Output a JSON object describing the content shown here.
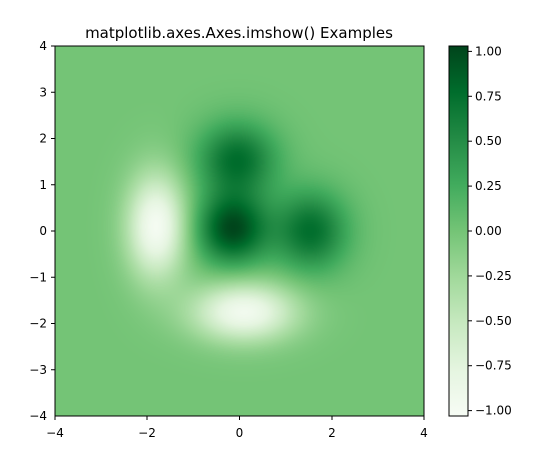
{
  "chart_data": {
    "type": "heatmap",
    "title": "matplotlib.axes.Axes.imshow() Examples",
    "xlabel": "",
    "ylabel": "",
    "xlim": [
      -4,
      4
    ],
    "ylim": [
      -4,
      4
    ],
    "xticks": [
      "−4",
      "−2",
      "0",
      "2",
      "4"
    ],
    "yticks": [
      "4",
      "3",
      "2",
      "1",
      "0",
      "−1",
      "−2",
      "−3",
      "−4"
    ],
    "colormap": "Greens",
    "colorbar": {
      "vmin": -1.03,
      "vmax": 1.03,
      "ticks": [
        "1.00",
        "0.75",
        "0.50",
        "0.25",
        "0.00",
        "−0.25",
        "−0.50",
        "−0.75",
        "−1.00"
      ]
    },
    "grid": false,
    "components": [
      {
        "x": -0.15,
        "y": 0.05,
        "amplitude": 1.0,
        "sigma_x": 0.55,
        "sigma_y": 0.55
      },
      {
        "x": -0.05,
        "y": 1.55,
        "amplitude": 0.75,
        "sigma_x": 0.6,
        "sigma_y": 0.55
      },
      {
        "x": 1.55,
        "y": 0.0,
        "amplitude": 0.75,
        "sigma_x": 0.55,
        "sigma_y": 0.6
      },
      {
        "x": -1.8,
        "y": 0.1,
        "amplitude": -1.0,
        "sigma_x": 0.45,
        "sigma_y": 0.8
      },
      {
        "x": 0.1,
        "y": -1.75,
        "amplitude": -0.95,
        "sigma_x": 0.8,
        "sigma_y": 0.45
      }
    ]
  }
}
